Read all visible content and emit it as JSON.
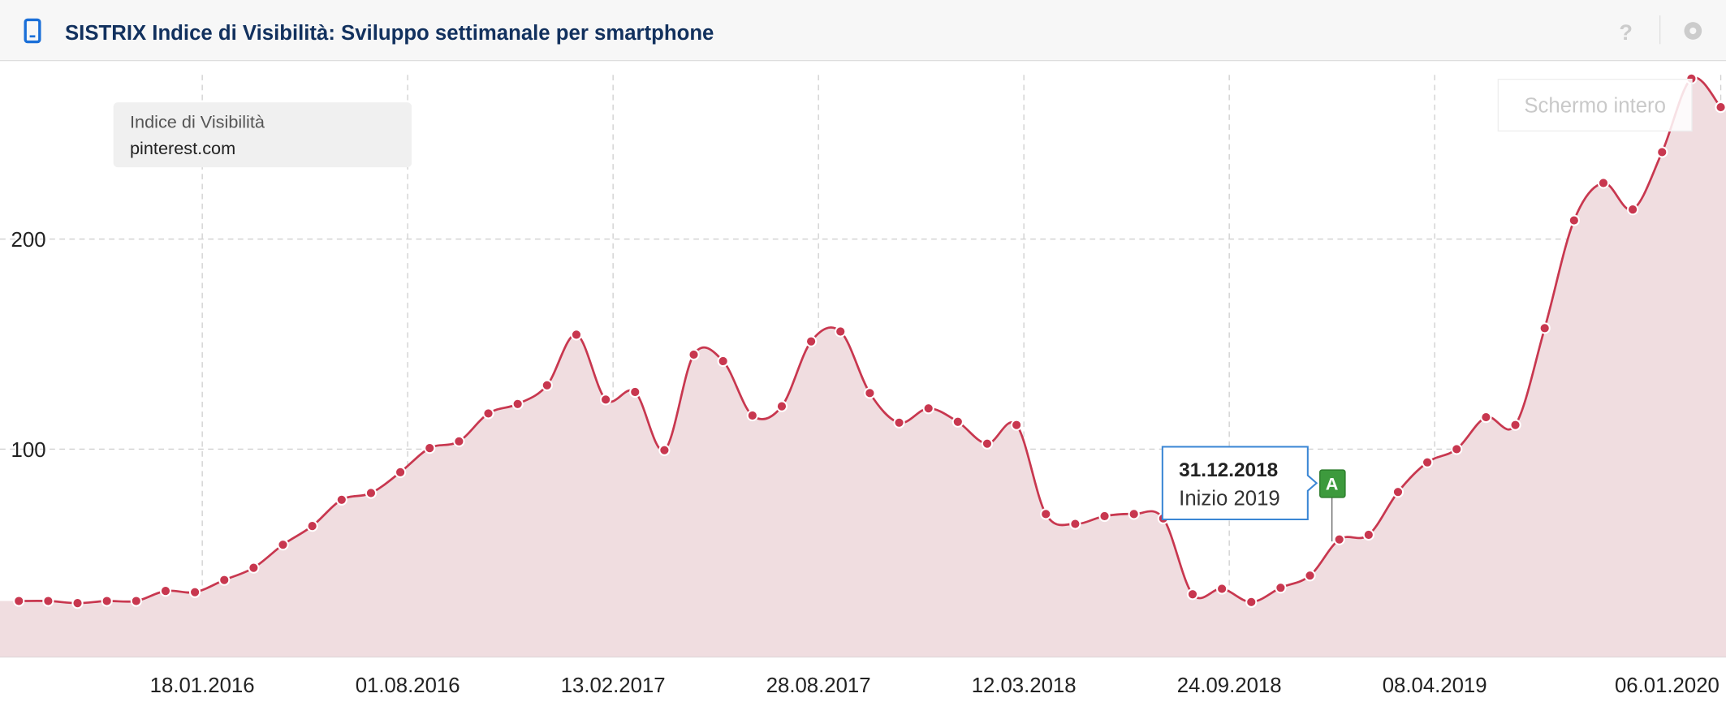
{
  "chart_data": {
    "type": "area-line",
    "title": "SISTRIX Indice di Visibilità: Sviluppo settimanale per smartphone",
    "legend_title": "Indice di Visibilità",
    "button": "Schermo intero",
    "help": "?",
    "x": [
      "27.07.2015",
      "24.08.2015",
      "21.09.2015",
      "19.10.2015",
      "16.11.2015",
      "14.12.2015",
      "11.01.2016",
      "08.02.2016",
      "07.03.2016",
      "04.04.2016",
      "02.05.2016",
      "30.05.2016",
      "27.06.2016",
      "25.07.2016",
      "22.08.2016",
      "19.09.2016",
      "17.10.2016",
      "14.11.2016",
      "12.12.2016",
      "09.01.2017",
      "06.02.2017",
      "06.03.2017",
      "03.04.2017",
      "01.05.2017",
      "29.05.2017",
      "26.06.2017",
      "24.07.2017",
      "21.08.2017",
      "18.09.2017",
      "16.10.2017",
      "13.11.2017",
      "11.12.2017",
      "08.01.2018",
      "05.02.2018",
      "05.03.2018",
      "02.04.2018",
      "30.04.2018",
      "28.05.2018",
      "25.06.2018",
      "23.07.2018",
      "20.08.2018",
      "17.09.2018",
      "15.10.2018",
      "12.11.2018",
      "10.12.2018",
      "07.01.2019",
      "04.02.2019",
      "04.03.2019",
      "01.04.2019",
      "29.04.2019",
      "27.05.2019",
      "24.06.2019",
      "22.07.2019",
      "19.08.2019",
      "16.09.2019",
      "14.10.2019",
      "11.11.2019",
      "09.12.2019",
      "06.01.2020"
    ],
    "series": [
      {
        "name": "pinterest.com",
        "color": "#c8374f",
        "fill": "#f0dde0",
        "values": [
          27.7,
          27.7,
          26.7,
          27.7,
          27.7,
          32.5,
          31.9,
          37.7,
          43.5,
          54.5,
          63.4,
          75.9,
          79.1,
          89,
          100.5,
          103.7,
          117,
          121.5,
          130.4,
          154.5,
          123.6,
          127.2,
          99.5,
          145,
          141.9,
          116,
          120.4,
          151.3,
          156,
          126.7,
          112.6,
          119.4,
          113,
          102.6,
          111.5,
          69.1,
          64.4,
          68.1,
          69.1,
          67,
          30.9,
          33.5,
          27.2,
          34,
          39.8,
          57,
          59.2,
          79.6,
          93.7,
          100,
          115.2,
          111.5,
          157.6,
          208.9,
          226.7,
          214.1,
          241.4,
          276.4,
          262.8
        ]
      }
    ],
    "xlim": [
      "09.07.2015",
      "11.01.2020"
    ],
    "xticks": [
      "18.01.2016",
      "01.08.2016",
      "13.02.2017",
      "28.08.2017",
      "12.03.2018",
      "24.09.2018",
      "08.04.2019",
      "06.01.2020"
    ],
    "ylim": [
      0,
      285
    ],
    "yticks": [
      100,
      200
    ],
    "grid": true,
    "annotation": {
      "date": "31.12.2018",
      "text": "Inizio 2019",
      "marker": "A"
    }
  }
}
